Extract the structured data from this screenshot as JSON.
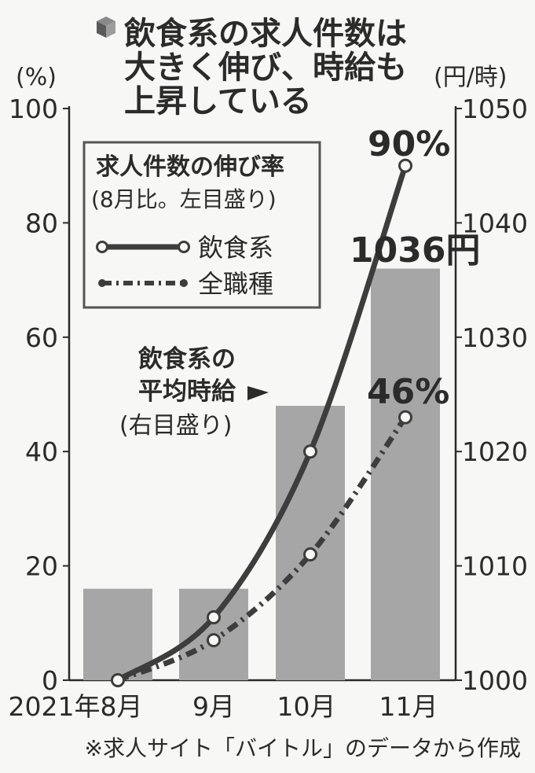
{
  "title": [
    "飲食系の求人件数は",
    "大きく伸び、時給も",
    "上昇している"
  ],
  "title_icon": "cube-icon",
  "left_unit": "(%)",
  "right_unit": "(円/時)",
  "legend": {
    "title": "求人件数の伸び率",
    "subtitle": "(8月比。左目盛り)",
    "series": [
      "飲食系",
      "全職種"
    ]
  },
  "bar_annotation": {
    "line1": "飲食系の",
    "line2": "平均時給",
    "line3": "(右目盛り)"
  },
  "data_labels": {
    "restaurant_last": "90%",
    "all_last": "46%",
    "wage_last": "1036円"
  },
  "source": "※求人サイト「バイトル」のデータから作成",
  "colors": {
    "bar": "#a6a6a6",
    "line": "#3d3d3d",
    "background": "#f7f7f5"
  },
  "chart_data": {
    "type": "bar+line",
    "categories": [
      "2021年8月",
      "9月",
      "10月",
      "11月"
    ],
    "bars": {
      "name": "飲食系の平均時給",
      "axis": "right",
      "values": [
        1008,
        1008,
        1024,
        1036
      ]
    },
    "series": [
      {
        "name": "飲食系",
        "axis": "left",
        "style": "solid",
        "values": [
          0,
          11,
          40,
          90
        ]
      },
      {
        "name": "全職種",
        "axis": "left",
        "style": "dash-dot",
        "values": [
          0,
          7,
          22,
          46
        ]
      }
    ],
    "left_axis": {
      "label": "(%)",
      "ylim": [
        0,
        100
      ],
      "ticks": [
        0,
        20,
        40,
        60,
        80,
        100
      ]
    },
    "right_axis": {
      "label": "(円/時)",
      "ylim": [
        1000,
        1050
      ],
      "ticks": [
        1000,
        1010,
        1020,
        1030,
        1040,
        1050
      ]
    },
    "grid": false,
    "legend_position": "top-left"
  }
}
